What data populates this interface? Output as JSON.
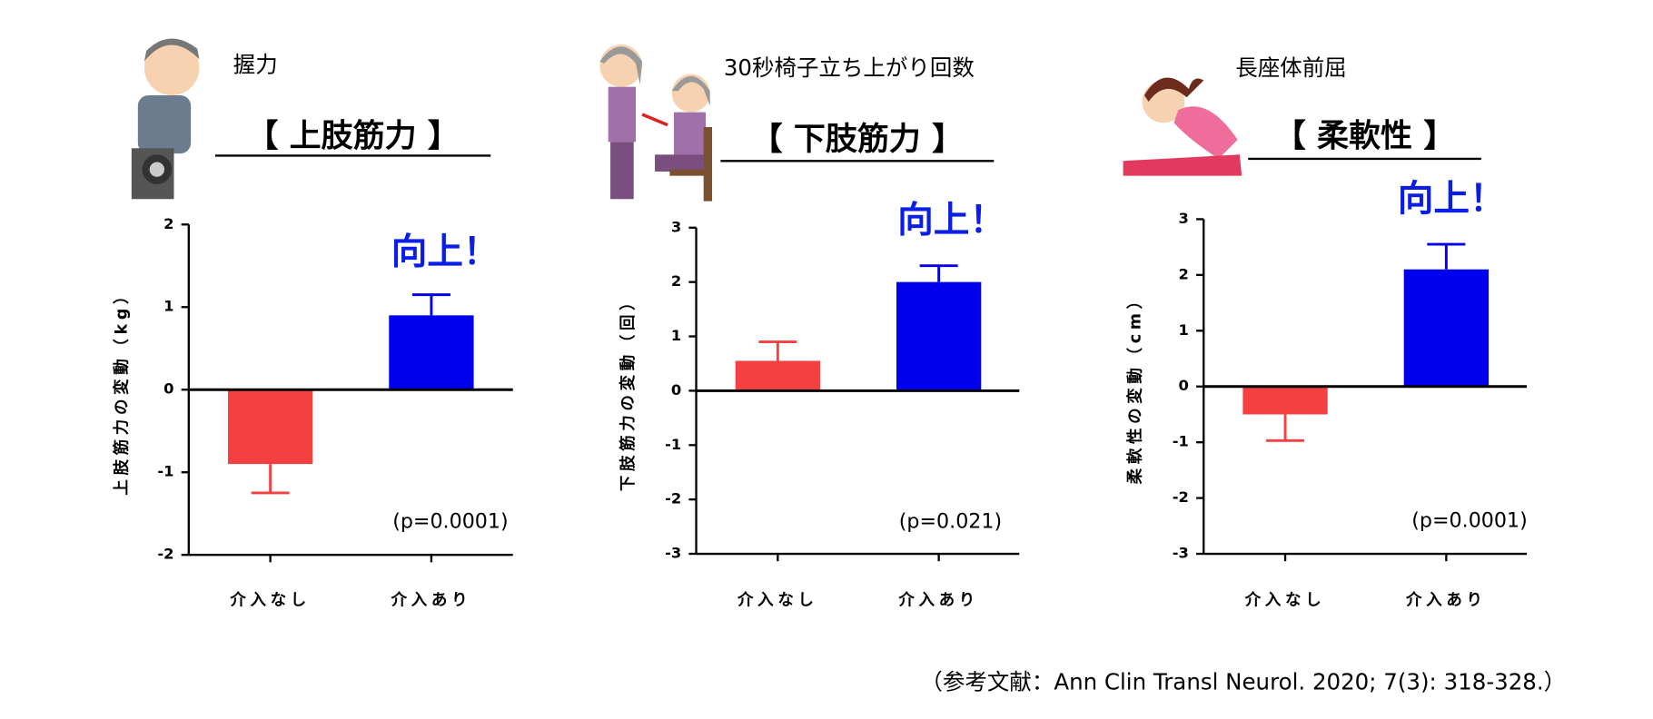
{
  "reference": "（参考文献：Ann Clin Transl Neurol. 2020; 7(3): 318-328.）",
  "chart_data": [
    {
      "type": "bar",
      "title": "握力",
      "heading": "【 上肢筋力 】",
      "annotation": "向上！",
      "p_value": "(p=0.0001)",
      "y_label": "上肢筋力の変動（kg）",
      "categories": [
        "介入なし",
        "介入あり"
      ],
      "values": [
        -0.9,
        0.9
      ],
      "errors": [
        0.35,
        0.25
      ],
      "colors": [
        "#f44040",
        "#0000ee"
      ],
      "ylim": [
        -2,
        2
      ],
      "yticks": [
        -2,
        -1,
        0,
        1,
        2
      ]
    },
    {
      "type": "bar",
      "title": "30秒椅子立ち上がり回数",
      "heading": "【 下肢筋力 】",
      "annotation": "向上！",
      "p_value": "(p=0.021)",
      "y_label": "下肢筋力の変動（回）",
      "categories": [
        "介入なし",
        "介入あり"
      ],
      "values": [
        0.55,
        2.0
      ],
      "errors": [
        0.35,
        0.3
      ],
      "colors": [
        "#f44040",
        "#0000ee"
      ],
      "ylim": [
        -3,
        3
      ],
      "yticks": [
        -3,
        -2,
        -1,
        0,
        1,
        2,
        3
      ]
    },
    {
      "type": "bar",
      "title": "長座体前屈",
      "heading": "【 柔軟性 】",
      "annotation": "向上！",
      "p_value": "(p=0.0001)",
      "y_label": "柔軟性の変動（cm）",
      "categories": [
        "介入なし",
        "介入あり"
      ],
      "values": [
        -0.5,
        2.1
      ],
      "errors": [
        0.47,
        0.45
      ],
      "colors": [
        "#f44040",
        "#0000ee"
      ],
      "ylim": [
        -3,
        3
      ],
      "yticks": [
        -3,
        -2,
        -1,
        0,
        1,
        2,
        3
      ]
    }
  ]
}
